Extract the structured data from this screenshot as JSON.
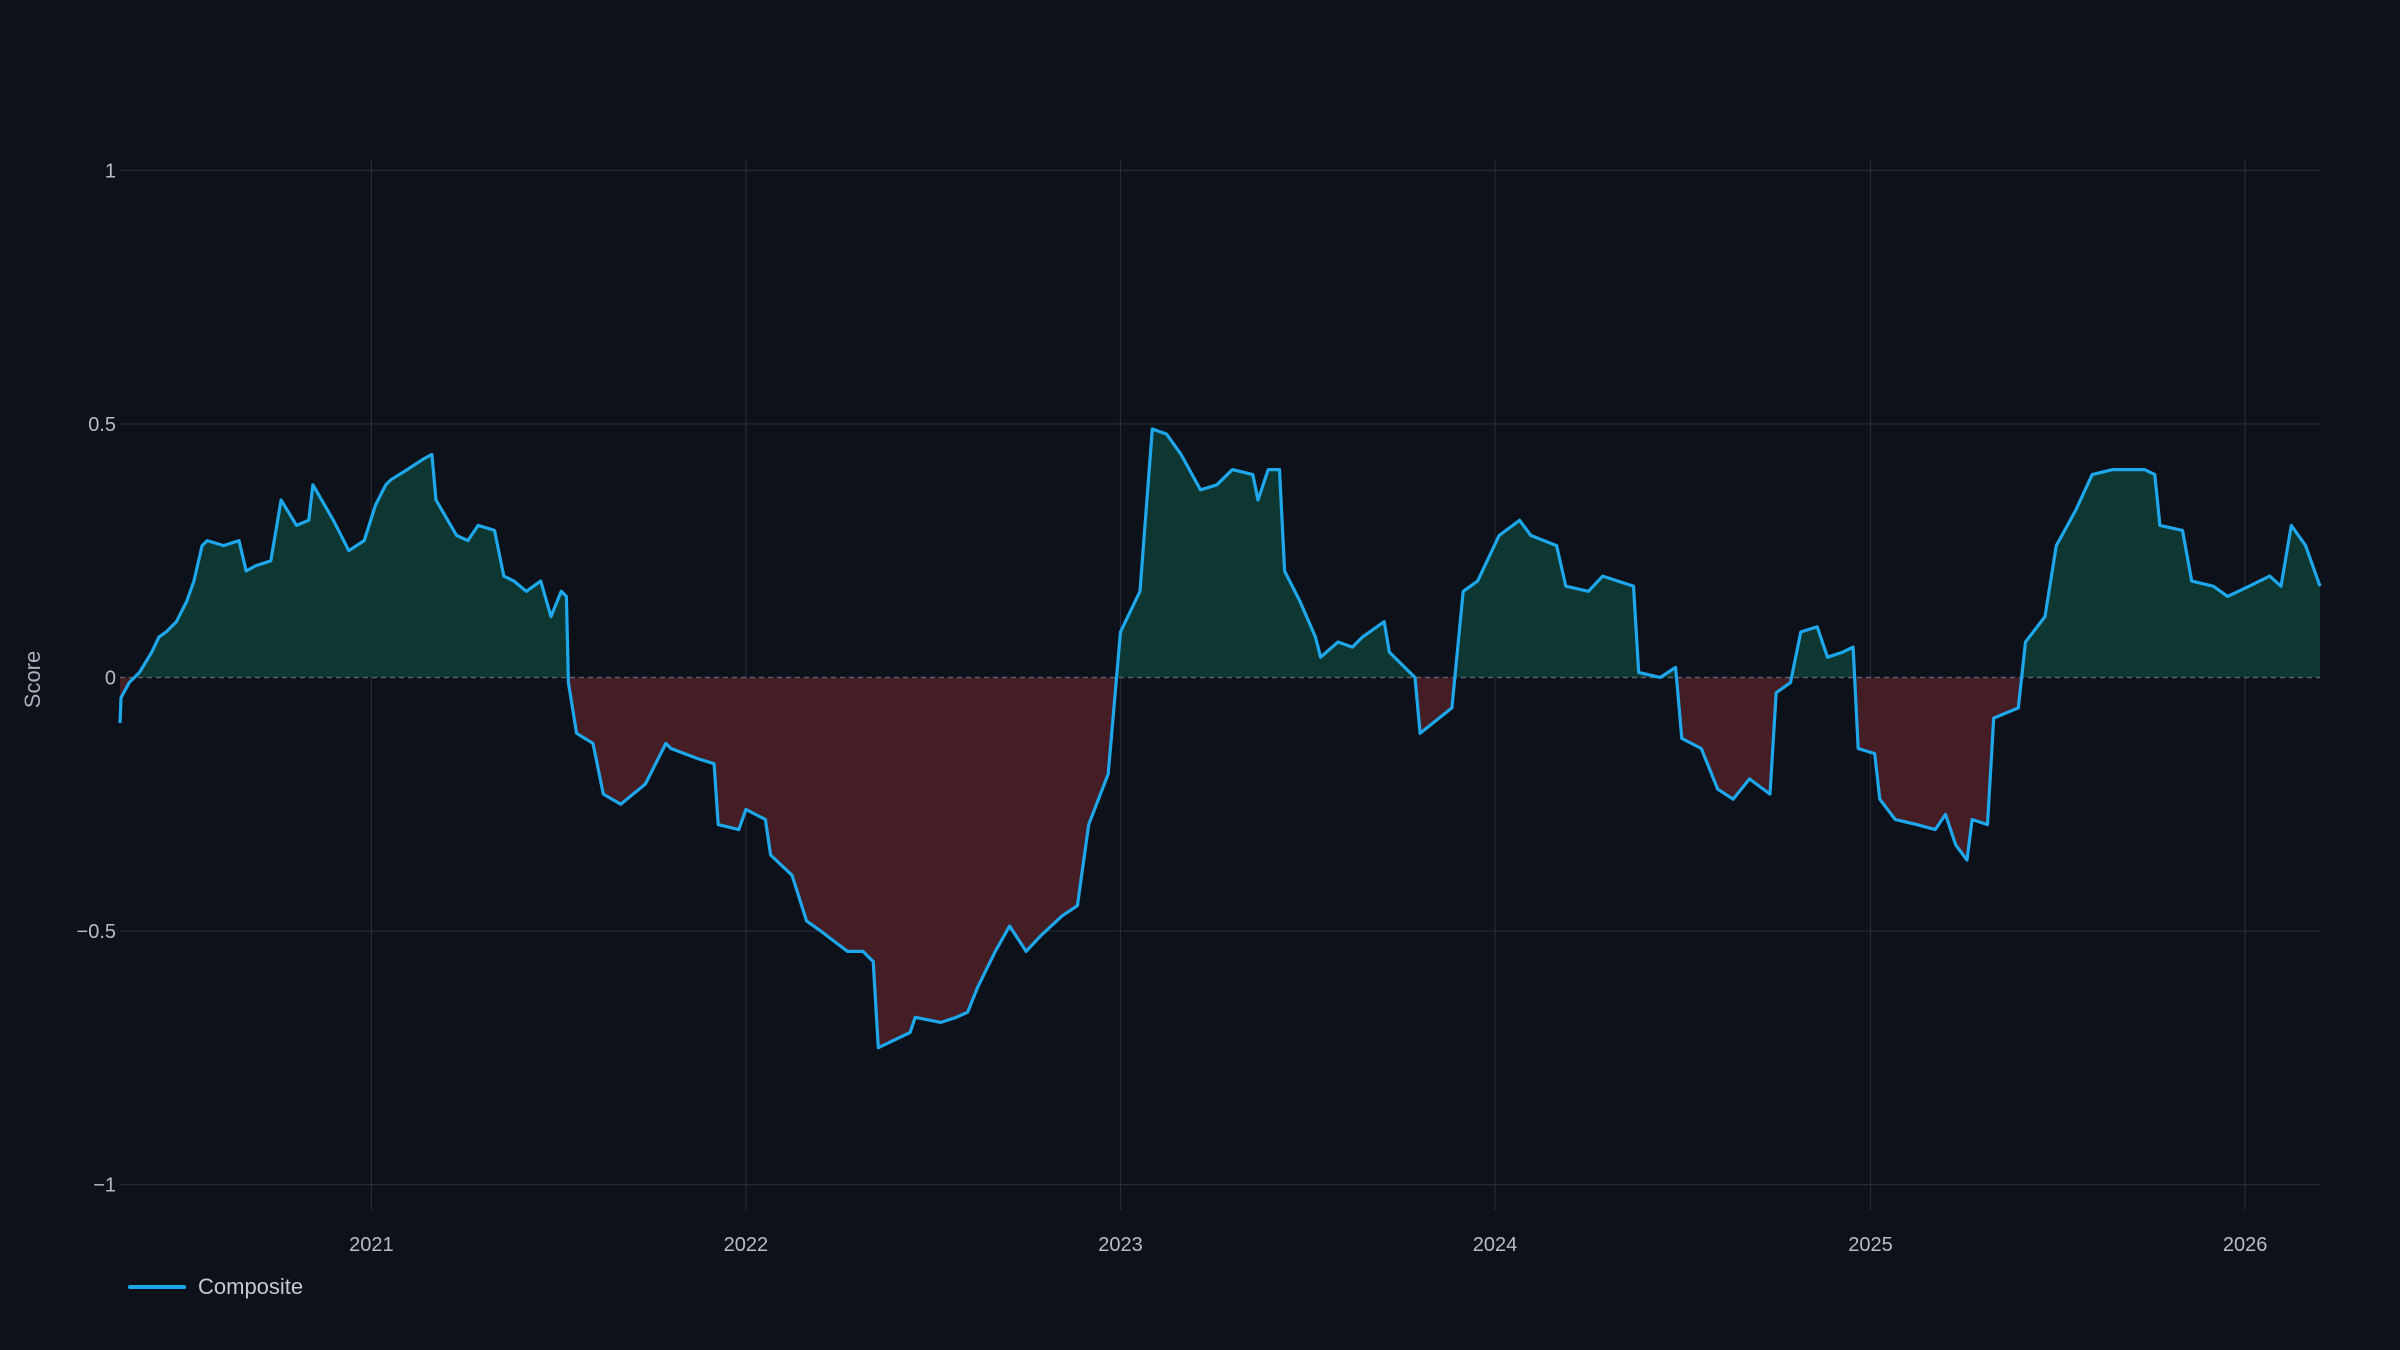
{
  "colors": {
    "background": "#0d111a",
    "line": "#1ea7ea",
    "positive_fill": "#0f3a33",
    "negative_fill": "#481f26",
    "grid": "#262b35",
    "zero_line": "#5a6070"
  },
  "legend": [
    {
      "name": "Composite",
      "color": "#1ea7ea"
    }
  ],
  "chart_data": {
    "type": "area",
    "title": "",
    "xlabel": "",
    "ylabel": "Score",
    "ylim": [
      -1.05,
      1.05
    ],
    "xlim": [
      "2020-05-01",
      "2026-03-15"
    ],
    "x_ticks": [
      "2021",
      "2022",
      "2023",
      "2024",
      "2025",
      "2026"
    ],
    "y_ticks": [
      1,
      0.5,
      0,
      -0.5,
      -1
    ],
    "y_tick_labels": [
      "1",
      "0.5",
      "0",
      "−0.5",
      "−1"
    ],
    "grid": true,
    "zero_line": "dashed",
    "legend_position": "bottom-left",
    "fill": "sign-colored: green above zero, red below zero",
    "series": [
      {
        "name": "Composite",
        "points": [
          [
            "2020-05-01",
            -0.09
          ],
          [
            "2020-05-02",
            -0.04
          ],
          [
            "2020-05-10",
            -0.01
          ],
          [
            "2020-05-20",
            0.01
          ],
          [
            "2020-06-01",
            0.05
          ],
          [
            "2020-06-08",
            0.08
          ],
          [
            "2020-06-15",
            0.09
          ],
          [
            "2020-06-25",
            0.11
          ],
          [
            "2020-07-05",
            0.15
          ],
          [
            "2020-07-12",
            0.19
          ],
          [
            "2020-07-20",
            0.26
          ],
          [
            "2020-07-25",
            0.27
          ],
          [
            "2020-08-10",
            0.26
          ],
          [
            "2020-08-25",
            0.27
          ],
          [
            "2020-09-01",
            0.21
          ],
          [
            "2020-09-10",
            0.22
          ],
          [
            "2020-09-25",
            0.23
          ],
          [
            "2020-10-05",
            0.35
          ],
          [
            "2020-10-20",
            0.3
          ],
          [
            "2020-11-01",
            0.31
          ],
          [
            "2020-11-05",
            0.38
          ],
          [
            "2020-11-25",
            0.31
          ],
          [
            "2020-12-10",
            0.25
          ],
          [
            "2020-12-25",
            0.27
          ],
          [
            "2021-01-05",
            0.34
          ],
          [
            "2021-01-15",
            0.38
          ],
          [
            "2021-01-20",
            0.39
          ],
          [
            "2021-02-05",
            0.41
          ],
          [
            "2021-02-20",
            0.43
          ],
          [
            "2021-03-01",
            0.44
          ],
          [
            "2021-03-05",
            0.35
          ],
          [
            "2021-03-25",
            0.28
          ],
          [
            "2021-04-05",
            0.27
          ],
          [
            "2021-04-15",
            0.3
          ],
          [
            "2021-05-01",
            0.29
          ],
          [
            "2021-05-10",
            0.2
          ],
          [
            "2021-05-20",
            0.19
          ],
          [
            "2021-06-01",
            0.17
          ],
          [
            "2021-06-15",
            0.19
          ],
          [
            "2021-06-25",
            0.12
          ],
          [
            "2021-07-05",
            0.17
          ],
          [
            "2021-07-10",
            0.16
          ],
          [
            "2021-07-12",
            -0.01
          ],
          [
            "2021-07-20",
            -0.11
          ],
          [
            "2021-08-05",
            -0.13
          ],
          [
            "2021-08-15",
            -0.23
          ],
          [
            "2021-09-01",
            -0.25
          ],
          [
            "2021-09-25",
            -0.21
          ],
          [
            "2021-10-15",
            -0.13
          ],
          [
            "2021-10-20",
            -0.14
          ],
          [
            "2021-11-15",
            -0.16
          ],
          [
            "2021-12-01",
            -0.17
          ],
          [
            "2021-12-05",
            -0.29
          ],
          [
            "2021-12-25",
            -0.3
          ],
          [
            "2022-01-01",
            -0.26
          ],
          [
            "2022-01-20",
            -0.28
          ],
          [
            "2022-01-25",
            -0.35
          ],
          [
            "2022-02-15",
            -0.39
          ],
          [
            "2022-03-01",
            -0.48
          ],
          [
            "2022-03-15",
            -0.5
          ],
          [
            "2022-04-10",
            -0.54
          ],
          [
            "2022-04-25",
            -0.54
          ],
          [
            "2022-05-05",
            -0.56
          ],
          [
            "2022-05-10",
            -0.73
          ],
          [
            "2022-06-10",
            -0.7
          ],
          [
            "2022-06-15",
            -0.67
          ],
          [
            "2022-07-10",
            -0.68
          ],
          [
            "2022-07-25",
            -0.67
          ],
          [
            "2022-08-05",
            -0.66
          ],
          [
            "2022-08-15",
            -0.61
          ],
          [
            "2022-09-01",
            -0.54
          ],
          [
            "2022-09-15",
            -0.49
          ],
          [
            "2022-10-01",
            -0.54
          ],
          [
            "2022-10-15",
            -0.51
          ],
          [
            "2022-11-05",
            -0.47
          ],
          [
            "2022-11-20",
            -0.45
          ],
          [
            "2022-12-01",
            -0.29
          ],
          [
            "2022-12-20",
            -0.19
          ],
          [
            "2023-01-01",
            0.09
          ],
          [
            "2023-01-20",
            0.17
          ],
          [
            "2023-02-01",
            0.49
          ],
          [
            "2023-02-15",
            0.48
          ],
          [
            "2023-03-01",
            0.44
          ],
          [
            "2023-03-20",
            0.37
          ],
          [
            "2023-04-05",
            0.38
          ],
          [
            "2023-04-20",
            0.41
          ],
          [
            "2023-05-10",
            0.4
          ],
          [
            "2023-05-15",
            0.35
          ],
          [
            "2023-05-25",
            0.41
          ],
          [
            "2023-06-05",
            0.41
          ],
          [
            "2023-06-10",
            0.21
          ],
          [
            "2023-06-25",
            0.15
          ],
          [
            "2023-07-10",
            0.08
          ],
          [
            "2023-07-15",
            0.04
          ],
          [
            "2023-08-01",
            0.07
          ],
          [
            "2023-08-15",
            0.06
          ],
          [
            "2023-08-25",
            0.08
          ],
          [
            "2023-09-15",
            0.11
          ],
          [
            "2023-09-20",
            0.05
          ],
          [
            "2023-10-15",
            0.0
          ],
          [
            "2023-10-20",
            -0.11
          ],
          [
            "2023-11-20",
            -0.06
          ],
          [
            "2023-12-01",
            0.17
          ],
          [
            "2023-12-15",
            0.19
          ],
          [
            "2024-01-05",
            0.28
          ],
          [
            "2024-01-25",
            0.31
          ],
          [
            "2024-02-05",
            0.28
          ],
          [
            "2024-03-01",
            0.26
          ],
          [
            "2024-03-10",
            0.18
          ],
          [
            "2024-04-01",
            0.17
          ],
          [
            "2024-04-15",
            0.2
          ],
          [
            "2024-05-15",
            0.18
          ],
          [
            "2024-05-20",
            0.01
          ],
          [
            "2024-06-10",
            0.0
          ],
          [
            "2024-06-25",
            0.02
          ],
          [
            "2024-07-01",
            -0.12
          ],
          [
            "2024-07-20",
            -0.14
          ],
          [
            "2024-08-05",
            -0.22
          ],
          [
            "2024-08-20",
            -0.24
          ],
          [
            "2024-09-05",
            -0.2
          ],
          [
            "2024-09-25",
            -0.23
          ],
          [
            "2024-10-01",
            -0.03
          ],
          [
            "2024-10-15",
            -0.01
          ],
          [
            "2024-10-25",
            0.09
          ],
          [
            "2024-11-10",
            0.1
          ],
          [
            "2024-11-20",
            0.04
          ],
          [
            "2024-12-05",
            0.05
          ],
          [
            "2024-12-15",
            0.06
          ],
          [
            "2024-12-20",
            -0.14
          ],
          [
            "2025-01-05",
            -0.15
          ],
          [
            "2025-01-10",
            -0.24
          ],
          [
            "2025-01-25",
            -0.28
          ],
          [
            "2025-02-15",
            -0.29
          ],
          [
            "2025-03-05",
            -0.3
          ],
          [
            "2025-03-15",
            -0.27
          ],
          [
            "2025-03-25",
            -0.33
          ],
          [
            "2025-04-05",
            -0.36
          ],
          [
            "2025-04-10",
            -0.28
          ],
          [
            "2025-04-25",
            -0.29
          ],
          [
            "2025-05-01",
            -0.08
          ],
          [
            "2025-05-25",
            -0.06
          ],
          [
            "2025-06-01",
            0.07
          ],
          [
            "2025-06-20",
            0.12
          ],
          [
            "2025-07-01",
            0.26
          ],
          [
            "2025-07-20",
            0.33
          ],
          [
            "2025-08-05",
            0.4
          ],
          [
            "2025-08-25",
            0.41
          ],
          [
            "2025-09-25",
            0.41
          ],
          [
            "2025-10-05",
            0.4
          ],
          [
            "2025-10-10",
            0.3
          ],
          [
            "2025-11-01",
            0.29
          ],
          [
            "2025-11-10",
            0.19
          ],
          [
            "2025-12-01",
            0.18
          ],
          [
            "2025-12-15",
            0.16
          ],
          [
            "2026-01-05",
            0.18
          ],
          [
            "2026-01-25",
            0.2
          ],
          [
            "2026-02-05",
            0.18
          ],
          [
            "2026-02-15",
            0.3
          ],
          [
            "2026-03-01",
            0.26
          ],
          [
            "2026-03-15",
            0.18
          ]
        ]
      }
    ]
  }
}
